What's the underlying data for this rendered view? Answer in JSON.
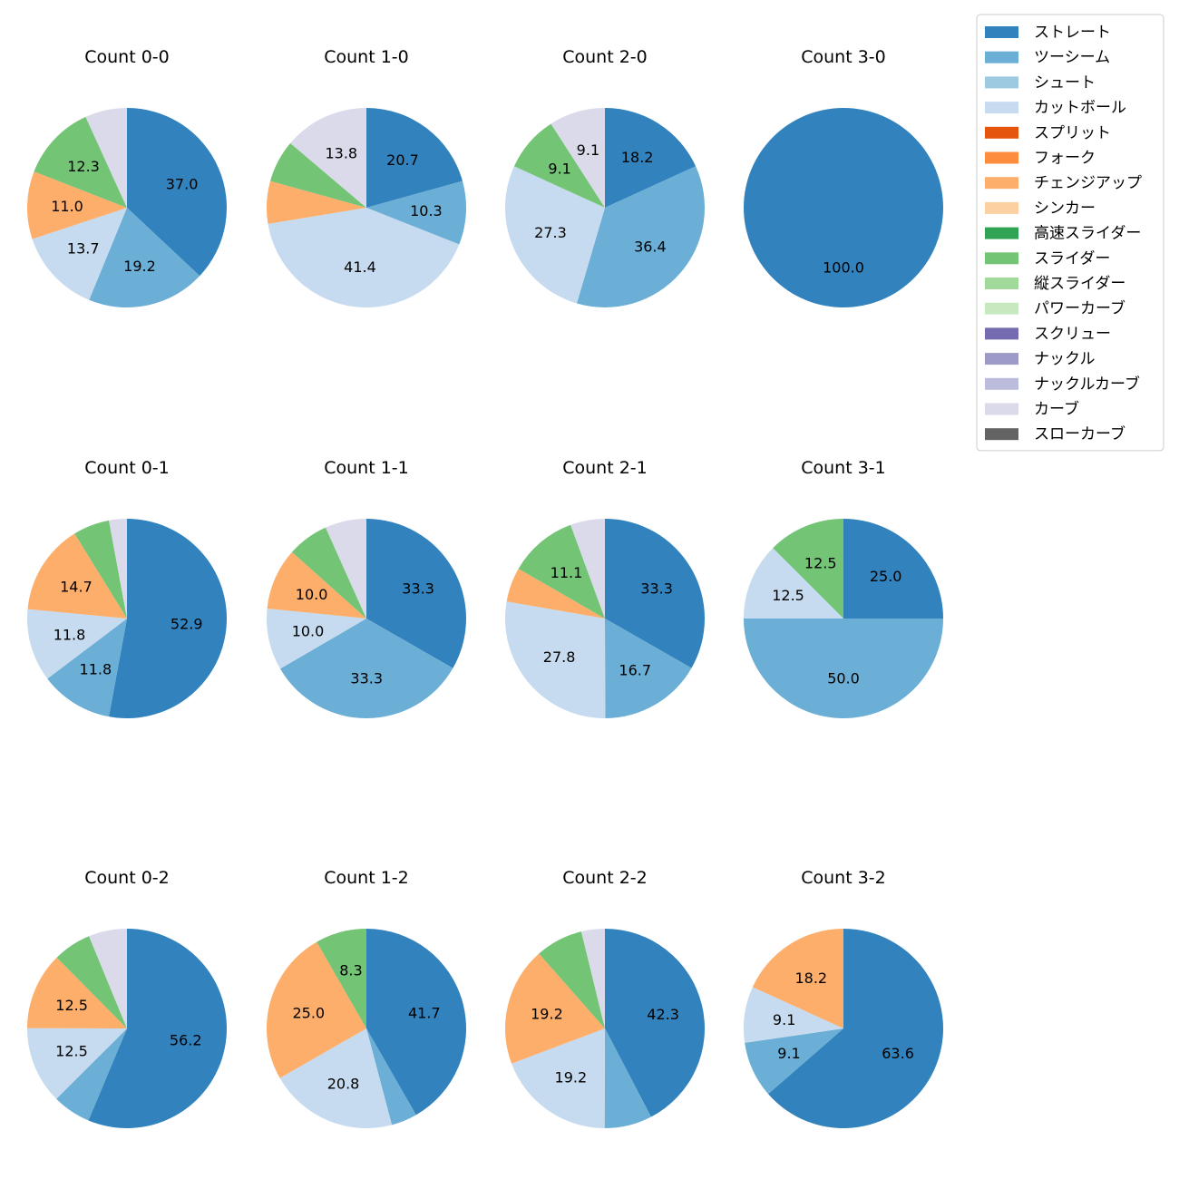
{
  "legend": [
    {
      "name": "ストレート",
      "color": "#3182bd"
    },
    {
      "name": "ツーシーム",
      "color": "#6baed6"
    },
    {
      "name": "シュート",
      "color": "#9ecae1"
    },
    {
      "name": "カットボール",
      "color": "#c6dbef"
    },
    {
      "name": "スプリット",
      "color": "#e6550d"
    },
    {
      "name": "フォーク",
      "color": "#fd8d3c"
    },
    {
      "name": "チェンジアップ",
      "color": "#fdae6b"
    },
    {
      "name": "シンカー",
      "color": "#fdd0a2"
    },
    {
      "name": "高速スライダー",
      "color": "#31a354"
    },
    {
      "name": "スライダー",
      "color": "#74c476"
    },
    {
      "name": "縦スライダー",
      "color": "#a1d99b"
    },
    {
      "name": "パワーカーブ",
      "color": "#c7e9c0"
    },
    {
      "name": "スクリュー",
      "color": "#756bb1"
    },
    {
      "name": "ナックル",
      "color": "#9e9ac8"
    },
    {
      "name": "ナックルカーブ",
      "color": "#bcbddc"
    },
    {
      "name": "カーブ",
      "color": "#dadaeb"
    },
    {
      "name": "スローカーブ",
      "color": "#636363"
    }
  ],
  "chart_data": [
    {
      "type": "pie",
      "title": "Count 0-0",
      "slices": [
        {
          "label": "ストレート",
          "value": 37.0,
          "text": "37.0"
        },
        {
          "label": "ツーシーム",
          "value": 19.2,
          "text": "19.2"
        },
        {
          "label": "カットボール",
          "value": 13.7,
          "text": "13.7"
        },
        {
          "label": "チェンジアップ",
          "value": 11.0,
          "text": "11.0"
        },
        {
          "label": "スライダー",
          "value": 12.3,
          "text": "12.3"
        },
        {
          "label": "カーブ",
          "value": 6.8,
          "text": ""
        }
      ]
    },
    {
      "type": "pie",
      "title": "Count 1-0",
      "slices": [
        {
          "label": "ストレート",
          "value": 20.7,
          "text": "20.7"
        },
        {
          "label": "ツーシーム",
          "value": 10.3,
          "text": "10.3"
        },
        {
          "label": "カットボール",
          "value": 41.4,
          "text": "41.4"
        },
        {
          "label": "チェンジアップ",
          "value": 6.9,
          "text": ""
        },
        {
          "label": "スライダー",
          "value": 6.9,
          "text": ""
        },
        {
          "label": "カーブ",
          "value": 13.8,
          "text": "13.8"
        }
      ]
    },
    {
      "type": "pie",
      "title": "Count 2-0",
      "slices": [
        {
          "label": "ストレート",
          "value": 18.2,
          "text": "18.2"
        },
        {
          "label": "ツーシーム",
          "value": 36.4,
          "text": "36.4"
        },
        {
          "label": "カットボール",
          "value": 27.3,
          "text": "27.3"
        },
        {
          "label": "スライダー",
          "value": 9.1,
          "text": "9.1"
        },
        {
          "label": "カーブ",
          "value": 9.1,
          "text": "9.1"
        }
      ]
    },
    {
      "type": "pie",
      "title": "Count 3-0",
      "slices": [
        {
          "label": "ストレート",
          "value": 100.0,
          "text": "100.0"
        }
      ]
    },
    {
      "type": "pie",
      "title": "Count 0-1",
      "slices": [
        {
          "label": "ストレート",
          "value": 52.9,
          "text": "52.9"
        },
        {
          "label": "ツーシーム",
          "value": 11.8,
          "text": "11.8"
        },
        {
          "label": "カットボール",
          "value": 11.8,
          "text": "11.8"
        },
        {
          "label": "チェンジアップ",
          "value": 14.7,
          "text": "14.7"
        },
        {
          "label": "スライダー",
          "value": 5.9,
          "text": ""
        },
        {
          "label": "カーブ",
          "value": 2.9,
          "text": ""
        }
      ]
    },
    {
      "type": "pie",
      "title": "Count 1-1",
      "slices": [
        {
          "label": "ストレート",
          "value": 33.3,
          "text": "33.3"
        },
        {
          "label": "ツーシーム",
          "value": 33.3,
          "text": "33.3"
        },
        {
          "label": "カットボール",
          "value": 10.0,
          "text": "10.0"
        },
        {
          "label": "チェンジアップ",
          "value": 10.0,
          "text": "10.0"
        },
        {
          "label": "スライダー",
          "value": 6.7,
          "text": ""
        },
        {
          "label": "カーブ",
          "value": 6.7,
          "text": ""
        }
      ]
    },
    {
      "type": "pie",
      "title": "Count 2-1",
      "slices": [
        {
          "label": "ストレート",
          "value": 33.3,
          "text": "33.3"
        },
        {
          "label": "ツーシーム",
          "value": 16.7,
          "text": "16.7"
        },
        {
          "label": "カットボール",
          "value": 27.8,
          "text": "27.8"
        },
        {
          "label": "チェンジアップ",
          "value": 5.6,
          "text": ""
        },
        {
          "label": "スライダー",
          "value": 11.1,
          "text": "11.1"
        },
        {
          "label": "カーブ",
          "value": 5.6,
          "text": ""
        }
      ]
    },
    {
      "type": "pie",
      "title": "Count 3-1",
      "slices": [
        {
          "label": "ストレート",
          "value": 25.0,
          "text": "25.0"
        },
        {
          "label": "ツーシーム",
          "value": 50.0,
          "text": "50.0"
        },
        {
          "label": "カットボール",
          "value": 12.5,
          "text": "12.5"
        },
        {
          "label": "スライダー",
          "value": 12.5,
          "text": "12.5"
        }
      ]
    },
    {
      "type": "pie",
      "title": "Count 0-2",
      "slices": [
        {
          "label": "ストレート",
          "value": 56.2,
          "text": "56.2"
        },
        {
          "label": "ツーシーム",
          "value": 6.2,
          "text": ""
        },
        {
          "label": "カットボール",
          "value": 12.5,
          "text": "12.5"
        },
        {
          "label": "チェンジアップ",
          "value": 12.5,
          "text": "12.5"
        },
        {
          "label": "スライダー",
          "value": 6.2,
          "text": ""
        },
        {
          "label": "カーブ",
          "value": 6.2,
          "text": ""
        }
      ]
    },
    {
      "type": "pie",
      "title": "Count 1-2",
      "slices": [
        {
          "label": "ストレート",
          "value": 41.7,
          "text": "41.7"
        },
        {
          "label": "ツーシーム",
          "value": 4.2,
          "text": ""
        },
        {
          "label": "カットボール",
          "value": 20.8,
          "text": "20.8"
        },
        {
          "label": "チェンジアップ",
          "value": 25.0,
          "text": "25.0"
        },
        {
          "label": "スライダー",
          "value": 8.3,
          "text": "8.3"
        }
      ]
    },
    {
      "type": "pie",
      "title": "Count 2-2",
      "slices": [
        {
          "label": "ストレート",
          "value": 42.3,
          "text": "42.3"
        },
        {
          "label": "ツーシーム",
          "value": 7.7,
          "text": ""
        },
        {
          "label": "カットボール",
          "value": 19.2,
          "text": "19.2"
        },
        {
          "label": "チェンジアップ",
          "value": 19.2,
          "text": "19.2"
        },
        {
          "label": "スライダー",
          "value": 7.7,
          "text": ""
        },
        {
          "label": "カーブ",
          "value": 3.8,
          "text": ""
        }
      ]
    },
    {
      "type": "pie",
      "title": "Count 3-2",
      "slices": [
        {
          "label": "ストレート",
          "value": 63.6,
          "text": "63.6"
        },
        {
          "label": "ツーシーム",
          "value": 9.1,
          "text": "9.1"
        },
        {
          "label": "カットボール",
          "value": 9.1,
          "text": "9.1"
        },
        {
          "label": "チェンジアップ",
          "value": 18.2,
          "text": "18.2"
        }
      ]
    }
  ]
}
